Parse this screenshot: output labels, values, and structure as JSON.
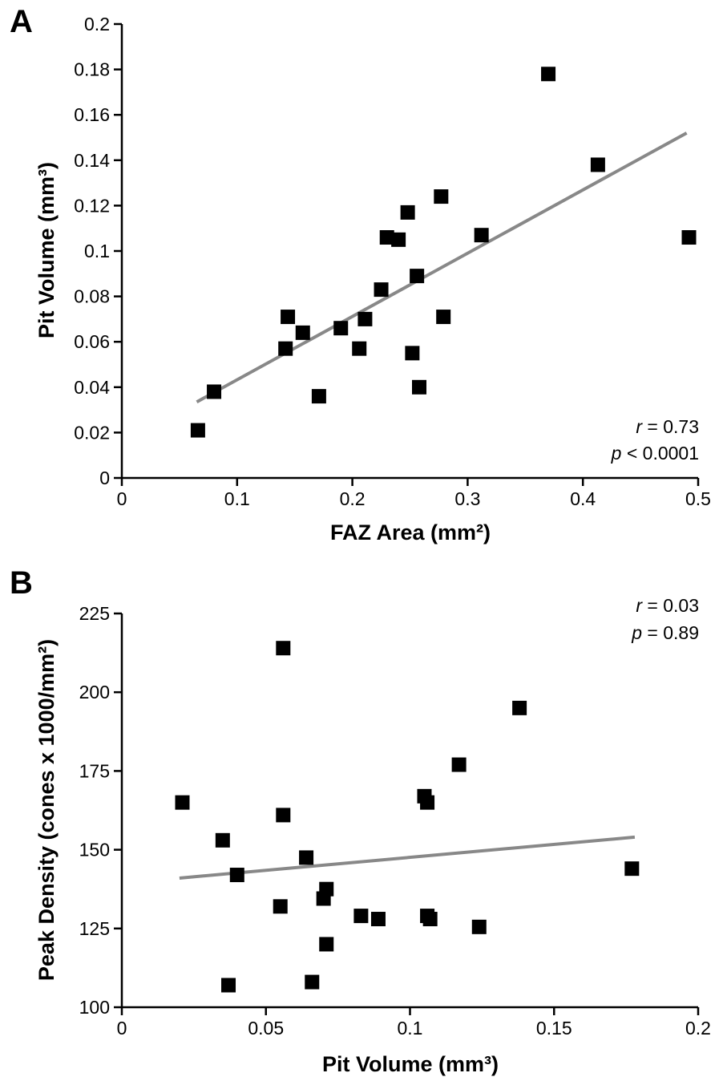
{
  "chart_data": [
    {
      "panel_label": "A",
      "type": "scatter",
      "xlabel": "FAZ Area (mm²)",
      "ylabel": "Pit Volume (mm³)",
      "xlim": [
        0,
        0.5
      ],
      "ylim": [
        0,
        0.2
      ],
      "x_ticks": [
        "0",
        "0.1",
        "0.2",
        "0.3",
        "0.4",
        "0.5"
      ],
      "x_tick_values": [
        0,
        0.1,
        0.2,
        0.3,
        0.4,
        0.5
      ],
      "y_ticks": [
        "0",
        "0.02",
        "0.04",
        "0.06",
        "0.08",
        "0.1",
        "0.12",
        "0.14",
        "0.16",
        "0.18",
        "0.2"
      ],
      "y_tick_values": [
        0,
        0.02,
        0.04,
        0.06,
        0.08,
        0.1,
        0.12,
        0.14,
        0.16,
        0.18,
        0.2
      ],
      "points": [
        {
          "x": 0.066,
          "y": 0.021
        },
        {
          "x": 0.08,
          "y": 0.038
        },
        {
          "x": 0.142,
          "y": 0.057
        },
        {
          "x": 0.144,
          "y": 0.071
        },
        {
          "x": 0.157,
          "y": 0.064
        },
        {
          "x": 0.171,
          "y": 0.036
        },
        {
          "x": 0.19,
          "y": 0.066
        },
        {
          "x": 0.206,
          "y": 0.057
        },
        {
          "x": 0.211,
          "y": 0.07
        },
        {
          "x": 0.225,
          "y": 0.083
        },
        {
          "x": 0.23,
          "y": 0.106
        },
        {
          "x": 0.24,
          "y": 0.105
        },
        {
          "x": 0.248,
          "y": 0.117
        },
        {
          "x": 0.252,
          "y": 0.055
        },
        {
          "x": 0.256,
          "y": 0.089
        },
        {
          "x": 0.258,
          "y": 0.04
        },
        {
          "x": 0.277,
          "y": 0.124
        },
        {
          "x": 0.279,
          "y": 0.071
        },
        {
          "x": 0.312,
          "y": 0.107
        },
        {
          "x": 0.37,
          "y": 0.178
        },
        {
          "x": 0.413,
          "y": 0.138
        },
        {
          "x": 0.492,
          "y": 0.106
        }
      ],
      "fit_line": {
        "x": [
          0.065,
          0.49
        ],
        "y": [
          0.0335,
          0.152
        ]
      },
      "stats": {
        "r": "r",
        "r_value": " = 0.73",
        "p": "p",
        "p_value": " < 0.0001"
      }
    },
    {
      "panel_label": "B",
      "type": "scatter",
      "xlabel": "Pit Volume (mm³)",
      "ylabel": "Peak Density (cones x 1000/mm²)",
      "xlim": [
        0,
        0.2
      ],
      "ylim": [
        100,
        225
      ],
      "x_ticks": [
        "0",
        "0.05",
        "0.1",
        "0.15",
        "0.2"
      ],
      "x_tick_values": [
        0,
        0.05,
        0.1,
        0.15,
        0.2
      ],
      "y_ticks": [
        "100",
        "125",
        "150",
        "175",
        "200",
        "225"
      ],
      "y_tick_values": [
        100,
        125,
        150,
        175,
        200,
        225
      ],
      "points": [
        {
          "x": 0.021,
          "y": 165
        },
        {
          "x": 0.035,
          "y": 153
        },
        {
          "x": 0.037,
          "y": 107
        },
        {
          "x": 0.04,
          "y": 142
        },
        {
          "x": 0.055,
          "y": 132
        },
        {
          "x": 0.056,
          "y": 214
        },
        {
          "x": 0.056,
          "y": 161
        },
        {
          "x": 0.064,
          "y": 147.5
        },
        {
          "x": 0.066,
          "y": 108
        },
        {
          "x": 0.07,
          "y": 134.5
        },
        {
          "x": 0.071,
          "y": 137.5
        },
        {
          "x": 0.071,
          "y": 120
        },
        {
          "x": 0.083,
          "y": 129
        },
        {
          "x": 0.089,
          "y": 128
        },
        {
          "x": 0.105,
          "y": 167
        },
        {
          "x": 0.106,
          "y": 165
        },
        {
          "x": 0.106,
          "y": 129
        },
        {
          "x": 0.107,
          "y": 128
        },
        {
          "x": 0.117,
          "y": 177
        },
        {
          "x": 0.124,
          "y": 125.5
        },
        {
          "x": 0.138,
          "y": 195
        },
        {
          "x": 0.177,
          "y": 144
        }
      ],
      "fit_line": {
        "x": [
          0.02,
          0.178
        ],
        "y": [
          141,
          154
        ]
      },
      "stats": {
        "r": "r",
        "r_value": " = 0.03",
        "p": "p",
        "p_value": " = 0.89"
      }
    }
  ],
  "style": {
    "marker_color": "#000000",
    "fit_line_color": "#888888",
    "axis_color": "#000000"
  }
}
